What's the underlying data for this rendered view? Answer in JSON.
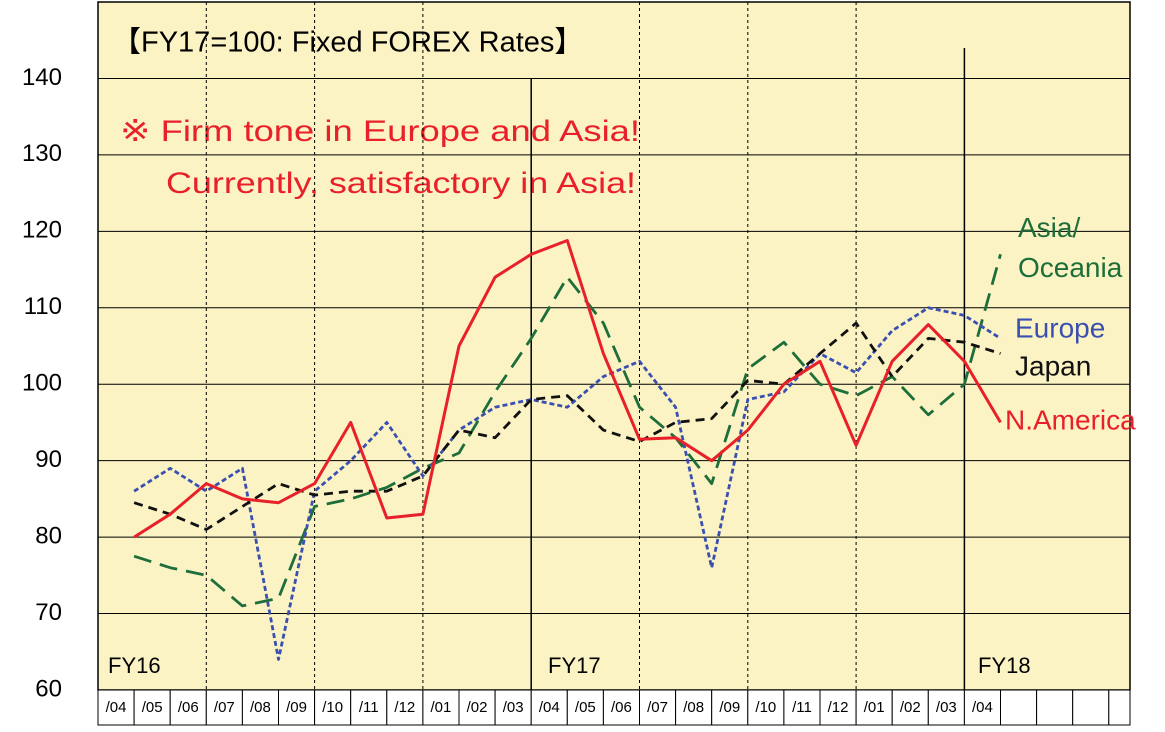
{
  "chart_data": {
    "type": "line",
    "title": "【FY17=100: Fixed FOREX Rates】",
    "annotations": [
      "※ Firm tone in Europe and Asia!",
      "Currently, satisfactory in Asia!",
      "FY16",
      "FY17",
      "FY18"
    ],
    "categories": [
      "/04",
      "/05",
      "/06",
      "/07",
      "/08",
      "/09",
      "/10",
      "/11",
      "/12",
      "/01",
      "/02",
      "/03",
      "/04",
      "/05",
      "/06",
      "/07",
      "/08",
      "/09",
      "/10",
      "/11",
      "/12",
      "/01",
      "/02",
      "/03",
      "/04",
      null,
      null,
      null
    ],
    "series": [
      {
        "name": "Asia/Oceania",
        "color": "#1e6e3a",
        "values": [
          77.5,
          76,
          75,
          71,
          72,
          84,
          85,
          86.5,
          89,
          91,
          99,
          106,
          114,
          108,
          97,
          93,
          87,
          102,
          105.5,
          100,
          98.5,
          101,
          96,
          100,
          117,
          null,
          null,
          null
        ]
      },
      {
        "name": "Europe",
        "color": "#3a50b0",
        "values": [
          86,
          89,
          86,
          89,
          64,
          86,
          90,
          95,
          88,
          94,
          97,
          98,
          97,
          101,
          103,
          97,
          76,
          98,
          99,
          104,
          101.5,
          107,
          110,
          109,
          106,
          null,
          null,
          null
        ]
      },
      {
        "name": "Japan",
        "color": "#111111",
        "values": [
          84.5,
          83,
          81,
          84,
          87,
          85.5,
          86,
          86,
          88,
          94,
          93,
          98,
          98.5,
          94,
          92.5,
          95,
          95.5,
          100.5,
          100,
          104,
          108,
          101,
          106,
          105.5,
          104,
          null,
          null,
          null
        ]
      },
      {
        "name": "N.America",
        "color": "#e8202a",
        "values": [
          80,
          83,
          87,
          85,
          84.5,
          87,
          95,
          82.5,
          83,
          105,
          114,
          117,
          118.8,
          104,
          92.8,
          93,
          90,
          94,
          100,
          103,
          92,
          103,
          107.8,
          103,
          95,
          null,
          null,
          null
        ]
      }
    ],
    "ylim": [
      60,
      150
    ],
    "yticks": [
      60,
      70,
      80,
      90,
      100,
      110,
      120,
      130,
      140
    ],
    "grid": true
  }
}
